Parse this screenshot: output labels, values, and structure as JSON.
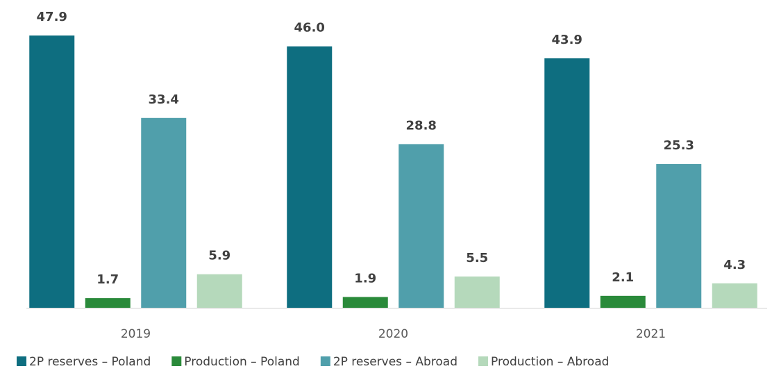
{
  "chart_data": {
    "type": "bar",
    "categories": [
      "2019",
      "2020",
      "2021"
    ],
    "series": [
      {
        "name": "2P reserves – Poland",
        "color": "#0e6e80",
        "values": [
          47.9,
          46.0,
          43.9
        ],
        "value_labels": [
          "47.9",
          "46.0",
          "43.9"
        ]
      },
      {
        "name": "Production – Poland",
        "color": "#2a8a3a",
        "values": [
          1.7,
          1.9,
          2.1
        ],
        "value_labels": [
          "1.7",
          "1.9",
          "2.1"
        ]
      },
      {
        "name": "2P reserves – Abroad",
        "color": "#509fab",
        "values": [
          33.4,
          28.8,
          25.3
        ],
        "value_labels": [
          "33.4",
          "28.8",
          "25.3"
        ]
      },
      {
        "name": "Production – Abroad",
        "color": "#b5d9bb",
        "values": [
          5.9,
          5.5,
          4.3
        ],
        "value_labels": [
          "5.9",
          "5.5",
          "4.3"
        ]
      }
    ],
    "ylim": [
      0,
      50
    ],
    "legend": "bottom"
  }
}
